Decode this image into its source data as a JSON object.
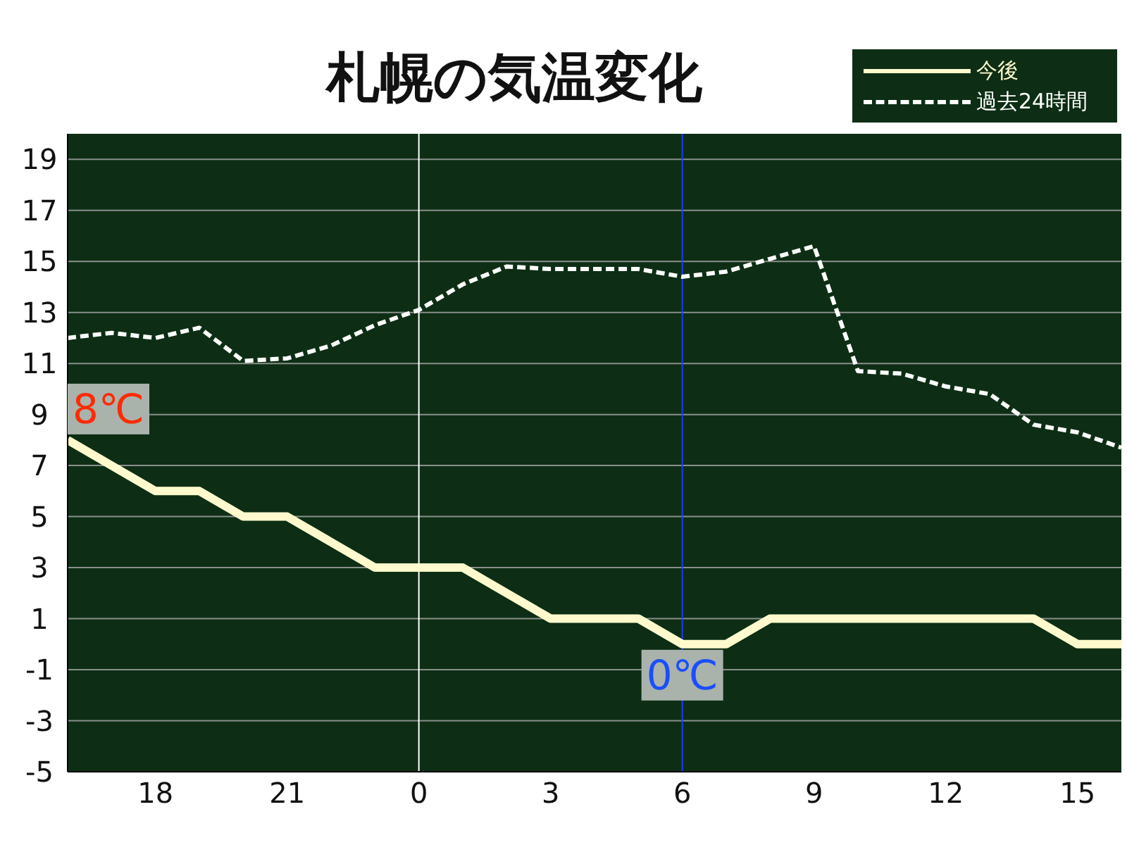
{
  "chart_data": {
    "type": "line",
    "title": "札幌の気温変化",
    "categories": [
      null,
      null,
      "18",
      null,
      null,
      "21",
      null,
      null,
      "0",
      null,
      null,
      "3",
      null,
      null,
      "6",
      null,
      null,
      "9",
      null,
      null,
      "12",
      null,
      null,
      "15",
      null
    ],
    "series": [
      {
        "name": "今後",
        "color": "#fffacd",
        "line_style": "solid",
        "values": [
          8,
          7,
          6,
          6,
          5,
          5,
          4,
          3,
          3,
          3,
          2,
          1,
          1,
          1,
          0,
          0,
          1,
          1,
          1,
          1,
          1,
          1,
          1,
          0,
          0
        ]
      },
      {
        "name": "過去24時間",
        "color": "#ffffff",
        "line_style": "dashed",
        "values": [
          12,
          12.2,
          12,
          12.4,
          11.1,
          11.2,
          11.7,
          12.5,
          13.1,
          14.1,
          14.8,
          14.7,
          14.7,
          14.7,
          14.4,
          14.6,
          15.1,
          15.6,
          10.7,
          10.6,
          10.1,
          9.8,
          8.6,
          8.3,
          7.7
        ]
      }
    ],
    "ylim": [
      -5,
      20
    ],
    "yticks": [
      -5,
      -3,
      -1,
      1,
      3,
      5,
      7,
      9,
      11,
      13,
      15,
      17,
      19
    ],
    "grid": "y",
    "legend": "top right",
    "marker": "none",
    "ref_lines": [
      {
        "axis": "x",
        "value": "0",
        "color": "#ffffff"
      },
      {
        "axis": "x",
        "value": "6",
        "color": "#1a3cff"
      }
    ],
    "annotations": [
      "8℃",
      {
        "text": "0℃",
        "x": "6",
        "y": 0
      }
    ]
  }
}
